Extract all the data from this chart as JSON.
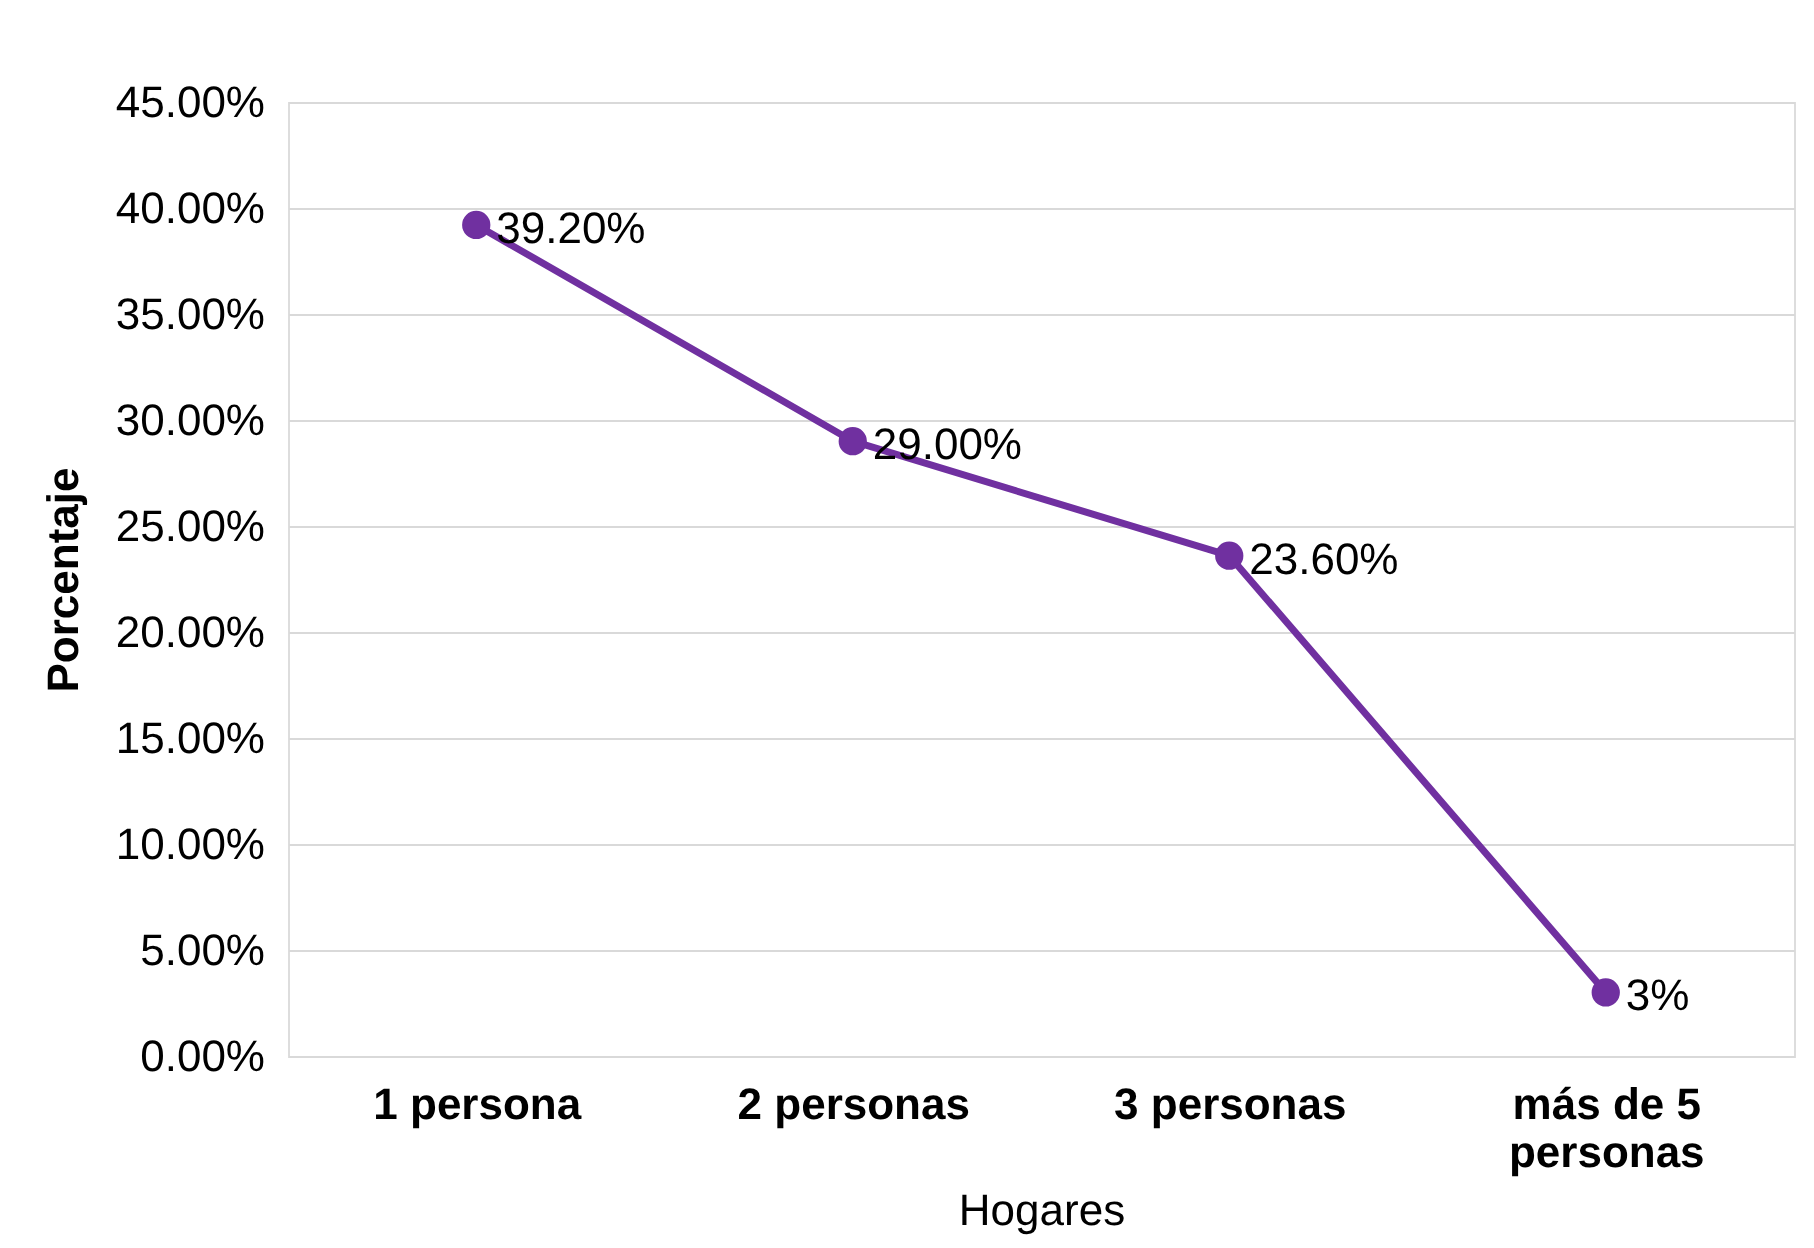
{
  "chart_data": {
    "type": "line",
    "xlabel": "Hogares",
    "ylabel": "Porcentaje",
    "categories": [
      "1 persona",
      "2 personas",
      "3 personas",
      "más de 5 personas"
    ],
    "series": [
      {
        "color": "#7030a0",
        "values": [
          39.2,
          29.0,
          23.6,
          3
        ],
        "value_labels": [
          "39.20%",
          "29.00%",
          "23.60%",
          "3%"
        ]
      }
    ],
    "ylim": [
      0,
      45
    ],
    "yticks": [
      {
        "value": 0,
        "label": "0.00%"
      },
      {
        "value": 5,
        "label": "5.00%"
      },
      {
        "value": 10,
        "label": "10.00%"
      },
      {
        "value": 15,
        "label": "15.00%"
      },
      {
        "value": 20,
        "label": "20.00%"
      },
      {
        "value": 25,
        "label": "25.00%"
      },
      {
        "value": 30,
        "label": "30.00%"
      },
      {
        "value": 35,
        "label": "35.00%"
      },
      {
        "value": 40,
        "label": "40.00%"
      },
      {
        "value": 45,
        "label": "45.00%"
      }
    ],
    "grid": "y",
    "marker": "circle",
    "line_style": "solid"
  }
}
